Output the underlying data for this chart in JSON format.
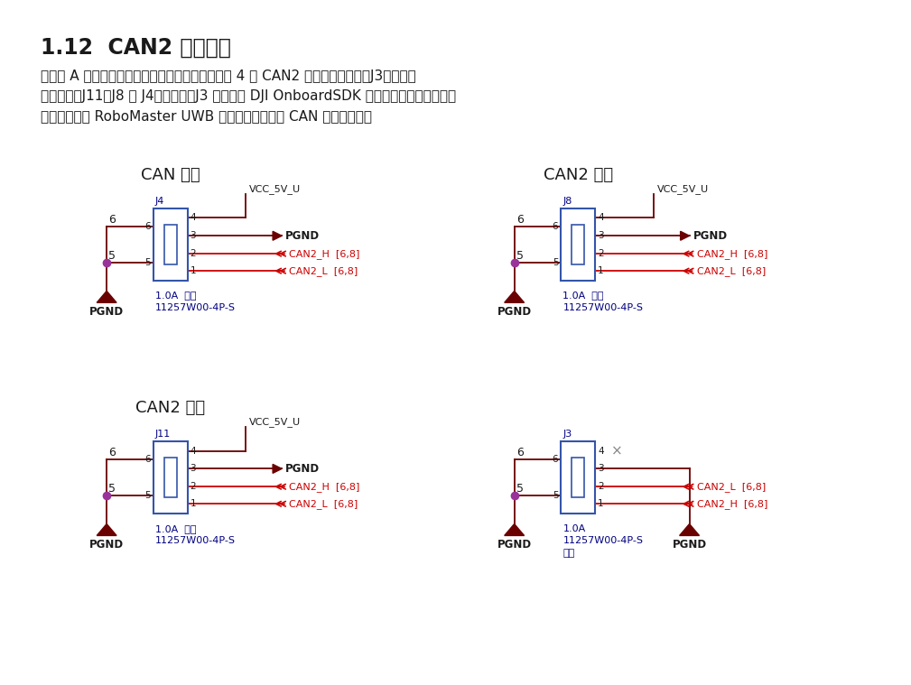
{
  "title": "1.12  CAN2 通讯接口",
  "body_line1": "开发板 A 型为满足用户外接设备的需求，一共引出 4 个 CAN2 接口，其中一个（J3）线序与",
  "body_line2": "另外三个（J11、J8 和 J4）不相同。J3 是专门为 DJI OnboardSDK 使用的通讯接口，其余三",
  "body_line3": "个接口可以接 RoboMaster UWB 定位系统以及其他 CAN 通讯的模块。",
  "bg_color": "#ffffff",
  "title_color": "#1a1a1a",
  "body_color": "#1a1a1a",
  "wire_dark": "#6b0000",
  "wire_red": "#cc0000",
  "box_blue": "#3355aa",
  "label_blue": "#000080",
  "pgnd_color": "#1a1a1a",
  "dot_color": "#993399"
}
